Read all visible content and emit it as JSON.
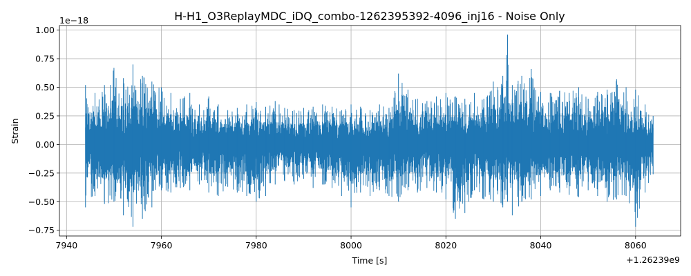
{
  "chart_data": {
    "type": "line",
    "title": "H-H1_O3ReplayMDC_iDQ_combo-1262395392-4096_inj16 - Noise Only",
    "xlabel": "Time [s]",
    "ylabel": "Strain",
    "x_offset_label": "+1.26239e9",
    "y_scale_label": "1e−18",
    "xlim": [
      7938.5,
      8069.5
    ],
    "ylim": [
      -0.8,
      1.04
    ],
    "xticks": [
      7940,
      7960,
      7980,
      8000,
      8020,
      8040,
      8060
    ],
    "xtick_labels": [
      "7940",
      "7960",
      "7980",
      "8000",
      "8020",
      "8040",
      "8060"
    ],
    "yticks": [
      -0.75,
      -0.5,
      -0.25,
      0.0,
      0.25,
      0.5,
      0.75,
      1.0
    ],
    "ytick_labels": [
      "−0.75",
      "−0.50",
      "−0.25",
      "0.00",
      "0.25",
      "0.50",
      "0.75",
      "1.00"
    ],
    "grid": true,
    "series": [
      {
        "color": "#1f77b4",
        "x_range": [
          7944.0,
          8063.7
        ],
        "envelope": {
          "x": [
            7944,
            7946,
            7948,
            7950,
            7952,
            7954,
            7956,
            7958,
            7960,
            7962,
            7964,
            7966,
            7968,
            7970,
            7972,
            7974,
            7976,
            7978,
            7980,
            7982,
            7984,
            7986,
            7988,
            7990,
            7992,
            7994,
            7996,
            7998,
            8000,
            8002,
            8004,
            8006,
            8008,
            8010,
            8012,
            8014,
            8016,
            8018,
            8020,
            8022,
            8024,
            8026,
            8028,
            8030,
            8032,
            8033,
            8034,
            8036,
            8038,
            8040,
            8042,
            8044,
            8046,
            8048,
            8050,
            8052,
            8054,
            8056,
            8058,
            8060,
            8062,
            8063.7
          ],
          "upper": [
            0.52,
            0.45,
            0.52,
            0.67,
            0.58,
            0.7,
            0.6,
            0.55,
            0.5,
            0.45,
            0.4,
            0.45,
            0.35,
            0.42,
            0.35,
            0.3,
            0.32,
            0.35,
            0.37,
            0.33,
            0.38,
            0.32,
            0.3,
            0.32,
            0.33,
            0.35,
            0.33,
            0.3,
            0.35,
            0.33,
            0.3,
            0.35,
            0.32,
            0.62,
            0.48,
            0.4,
            0.38,
            0.42,
            0.45,
            0.42,
            0.4,
            0.45,
            0.4,
            0.55,
            0.6,
            0.96,
            0.52,
            0.6,
            0.66,
            0.46,
            0.45,
            0.47,
            0.45,
            0.5,
            0.4,
            0.46,
            0.48,
            0.57,
            0.5,
            0.48,
            0.35,
            0.25
          ],
          "lower": [
            -0.55,
            -0.45,
            -0.52,
            -0.5,
            -0.62,
            -0.72,
            -0.65,
            -0.55,
            -0.4,
            -0.42,
            -0.38,
            -0.4,
            -0.35,
            -0.42,
            -0.45,
            -0.37,
            -0.42,
            -0.45,
            -0.5,
            -0.45,
            -0.35,
            -0.32,
            -0.35,
            -0.3,
            -0.38,
            -0.35,
            -0.38,
            -0.45,
            -0.55,
            -0.42,
            -0.45,
            -0.4,
            -0.45,
            -0.5,
            -0.4,
            -0.42,
            -0.38,
            -0.42,
            -0.48,
            -0.65,
            -0.6,
            -0.4,
            -0.48,
            -0.5,
            -0.55,
            -0.5,
            -0.62,
            -0.5,
            -0.48,
            -0.45,
            -0.4,
            -0.42,
            -0.44,
            -0.46,
            -0.4,
            -0.45,
            -0.5,
            -0.48,
            -0.45,
            -0.72,
            -0.42,
            -0.26
          ]
        }
      }
    ]
  }
}
